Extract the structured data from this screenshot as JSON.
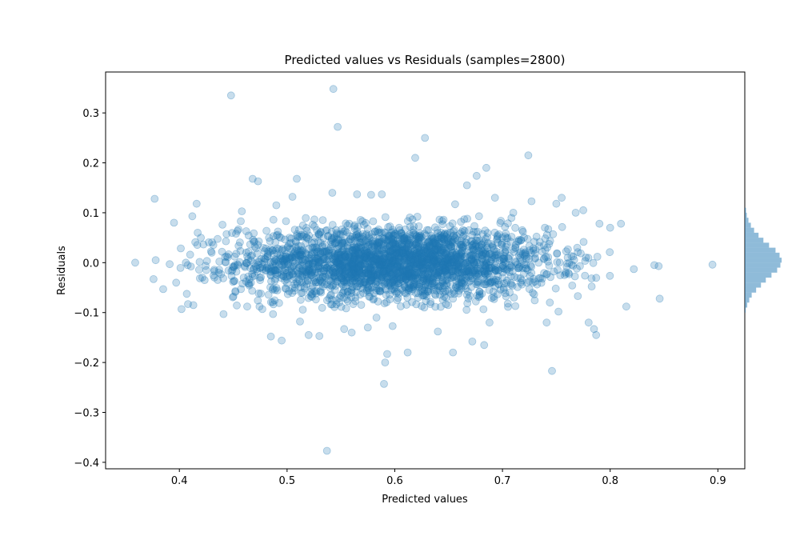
{
  "chart_data": {
    "type": "scatter",
    "title": "Predicted values vs Residuals (samples=2800)",
    "xlabel": "Predicted values",
    "ylabel": "Residuals",
    "xlim": [
      0.3315,
      0.925
    ],
    "ylim": [
      -0.413,
      0.382
    ],
    "xticks": [
      0.4,
      0.5,
      0.6,
      0.7,
      0.8,
      0.9
    ],
    "xtick_labels": [
      "0.4",
      "0.5",
      "0.6",
      "0.7",
      "0.8",
      "0.9"
    ],
    "yticks": [
      -0.4,
      -0.3,
      -0.2,
      -0.1,
      0.0,
      0.1,
      0.2,
      0.3
    ],
    "ytick_labels": [
      "−0.4",
      "−0.3",
      "−0.2",
      "−0.1",
      "0.0",
      "0.1",
      "0.2",
      "0.3"
    ],
    "grid": false,
    "legend": "none",
    "n_samples": 2800,
    "point_color": "#1f77b4",
    "point_alpha": 0.25,
    "series": [
      {
        "x": [
          0.359,
          0.377,
          0.376,
          0.378,
          0.385,
          0.391,
          0.395,
          0.397,
          0.402,
          0.406,
          0.408,
          0.41,
          0.412,
          0.413,
          0.416,
          0.417,
          0.42,
          0.425,
          0.43,
          0.44,
          0.441,
          0.448,
          0.452,
          0.457,
          0.458,
          0.462,
          0.463,
          0.468,
          0.47,
          0.473,
          0.477,
          0.479,
          0.485,
          0.487,
          0.49,
          0.495,
          0.499,
          0.505,
          0.507,
          0.509,
          0.512,
          0.515,
          0.52,
          0.53,
          0.537,
          0.542,
          0.543,
          0.546,
          0.547,
          0.553,
          0.56,
          0.565,
          0.57,
          0.575,
          0.578,
          0.583,
          0.588,
          0.59,
          0.591,
          0.593,
          0.598,
          0.604,
          0.612,
          0.617,
          0.619,
          0.621,
          0.625,
          0.628,
          0.64,
          0.654,
          0.656,
          0.667,
          0.672,
          0.676,
          0.683,
          0.685,
          0.688,
          0.693,
          0.7,
          0.705,
          0.71,
          0.712,
          0.724,
          0.727,
          0.741,
          0.744,
          0.746,
          0.75,
          0.752,
          0.755,
          0.768,
          0.77,
          0.775,
          0.78,
          0.785,
          0.787,
          0.79,
          0.8,
          0.81,
          0.815,
          0.822,
          0.841,
          0.845,
          0.846,
          0.895
        ],
        "y": [
          0.0,
          0.128,
          -0.033,
          0.005,
          -0.053,
          -0.003,
          0.08,
          -0.04,
          -0.093,
          0.0,
          -0.083,
          0.016,
          0.093,
          -0.085,
          0.118,
          0.06,
          0.05,
          -0.015,
          0.02,
          0.076,
          -0.103,
          0.335,
          -0.057,
          0.083,
          0.103,
          0.063,
          -0.088,
          0.168,
          0.032,
          0.163,
          -0.093,
          0.023,
          -0.148,
          -0.103,
          0.115,
          -0.156,
          0.083,
          0.132,
          -0.043,
          0.168,
          -0.118,
          0.053,
          -0.145,
          -0.147,
          -0.377,
          0.14,
          0.348,
          -0.075,
          0.272,
          -0.133,
          -0.14,
          0.137,
          0.083,
          -0.13,
          0.136,
          -0.11,
          0.137,
          -0.243,
          -0.2,
          -0.183,
          -0.127,
          0.07,
          -0.18,
          0.06,
          0.21,
          0.02,
          -0.087,
          0.25,
          -0.138,
          -0.18,
          0.117,
          0.155,
          -0.158,
          0.174,
          -0.165,
          0.19,
          -0.12,
          0.13,
          0.05,
          -0.082,
          0.1,
          -0.087,
          0.215,
          0.123,
          -0.12,
          -0.08,
          -0.217,
          0.118,
          -0.098,
          0.13,
          0.1,
          -0.067,
          0.105,
          -0.12,
          -0.133,
          -0.145,
          0.078,
          0.07,
          0.078,
          -0.088,
          -0.013,
          -0.005,
          -0.007,
          -0.072,
          -0.004
        ]
      }
    ],
    "cloud": {
      "center_x": 0.6,
      "spread_x": 0.072,
      "center_y": 0.0,
      "spread_y": 0.036,
      "x_range": [
        0.4,
        0.8
      ],
      "y_range": [
        -0.095,
        0.095
      ]
    },
    "histogram": {
      "orientation": "horizontal",
      "color": "#1f77b4",
      "alpha": 0.5,
      "bin_edges": [
        -0.1,
        -0.09,
        -0.08,
        -0.07,
        -0.06,
        -0.05,
        -0.04,
        -0.03,
        -0.02,
        -0.01,
        0.0,
        0.01,
        0.02,
        0.03,
        0.04,
        0.05,
        0.06,
        0.07,
        0.08,
        0.09,
        0.1,
        0.11
      ],
      "counts": [
        10,
        30,
        55,
        85,
        140,
        200,
        260,
        330,
        400,
        440,
        455,
        430,
        380,
        300,
        230,
        170,
        115,
        75,
        45,
        25,
        15
      ]
    }
  }
}
